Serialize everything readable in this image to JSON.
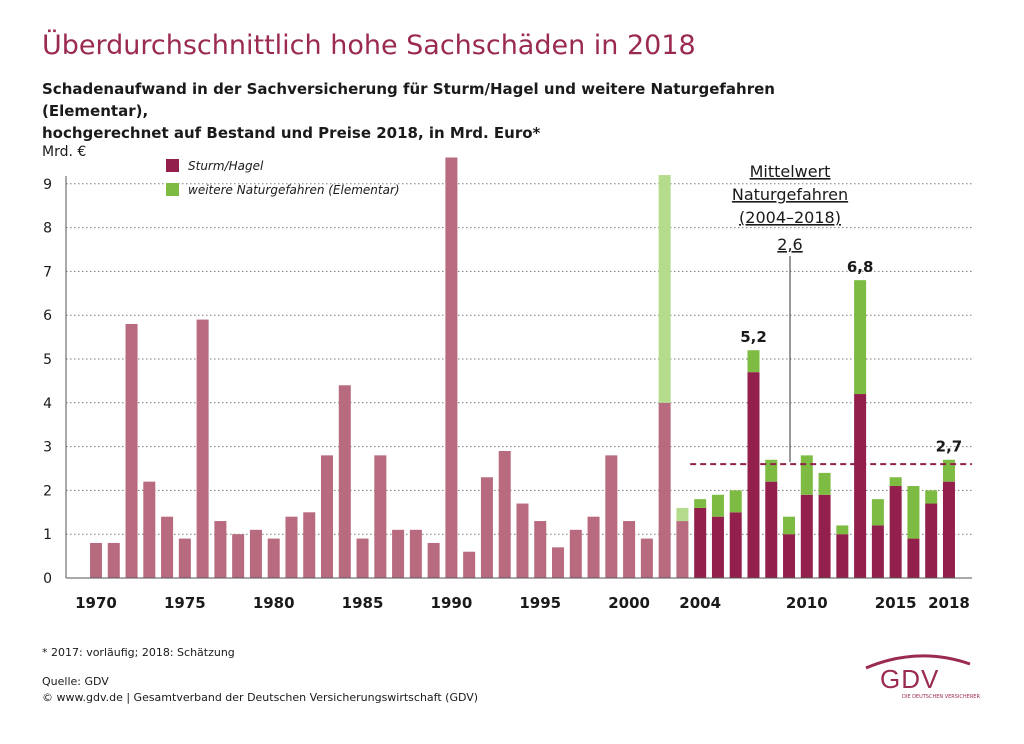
{
  "title": "Überdurchschnittlich hohe Sachschäden in 2018",
  "subtitle_line1": "Schadenaufwand in der Sachversicherung für Sturm/Hagel und weitere Naturgefahren (Elementar),",
  "subtitle_line2": "hochgerechnet auf Bestand und Preise 2018, in Mrd. Euro*",
  "footnote": "* 2017: vorläufig; 2018: Schätzung",
  "source_line1": "Quelle: GDV",
  "source_line2": "© www.gdv.de | Gesamtverband der Deutschen Versicherungswirtschaft (GDV)",
  "logo": {
    "name": "GDV",
    "tagline": "DIE DEUTSCHEN VERSICHERER"
  },
  "colors": {
    "sturm_old": "#b86a7e",
    "sturm_new": "#93204c",
    "elementar_old": "#b5db8d",
    "elementar_new": "#7dbb42",
    "mean_line": "#93204c",
    "title": "#9b2a52"
  },
  "chart_data": {
    "type": "bar",
    "stacked": true,
    "ylabel": "Mrd. €",
    "ylim": [
      0,
      9.5
    ],
    "yticks": [
      0,
      1,
      2,
      3,
      4,
      5,
      6,
      7,
      8,
      9
    ],
    "xtick_labels": [
      "1970",
      "1975",
      "1980",
      "1985",
      "1990",
      "1995",
      "2000",
      "2004",
      "2010",
      "2015",
      "2018"
    ],
    "grid": true,
    "legend": {
      "position": "top-left",
      "entries": [
        "Sturm/Hagel",
        "weitere Naturgefahren (Elementar)"
      ]
    },
    "categories": [
      1970,
      1971,
      1972,
      1973,
      1974,
      1975,
      1976,
      1977,
      1978,
      1979,
      1980,
      1981,
      1982,
      1983,
      1984,
      1985,
      1986,
      1987,
      1988,
      1989,
      1990,
      1991,
      1992,
      1993,
      1994,
      1995,
      1996,
      1997,
      1998,
      1999,
      2000,
      2001,
      2002,
      2003,
      2004,
      2005,
      2006,
      2007,
      2008,
      2009,
      2010,
      2011,
      2012,
      2013,
      2014,
      2015,
      2016,
      2017,
      2018
    ],
    "series": [
      {
        "name": "Sturm/Hagel",
        "values": [
          0.8,
          0.8,
          5.8,
          2.2,
          1.4,
          0.9,
          5.9,
          1.3,
          1.0,
          1.1,
          0.9,
          1.4,
          1.5,
          2.8,
          4.4,
          0.9,
          2.8,
          1.1,
          1.1,
          0.8,
          9.6,
          0.6,
          2.3,
          2.9,
          1.7,
          1.3,
          0.7,
          1.1,
          1.4,
          2.8,
          1.3,
          0.9,
          4.0,
          1.3,
          1.6,
          1.4,
          1.5,
          4.7,
          2.2,
          1.0,
          1.9,
          1.9,
          1.0,
          4.2,
          1.2,
          2.1,
          0.9,
          1.7,
          2.2
        ]
      },
      {
        "name": "weitere Naturgefahren (Elementar)",
        "values": [
          0,
          0,
          0,
          0,
          0,
          0,
          0,
          0,
          0,
          0,
          0,
          0,
          0,
          0,
          0,
          0,
          0,
          0,
          0,
          0,
          0,
          0,
          0,
          0,
          0,
          0,
          0,
          0,
          0,
          0,
          0,
          0,
          5.2,
          0.3,
          0.2,
          0.5,
          0.5,
          0.5,
          0.5,
          0.4,
          0.9,
          0.5,
          0.2,
          2.6,
          0.6,
          0.2,
          1.2,
          0.3,
          0.5
        ]
      }
    ],
    "highlight_from_year": 2004,
    "mean": {
      "value": 2.6,
      "label_lines": [
        "Mittelwert",
        "Naturgefahren",
        "(2004–2018)"
      ],
      "value_label": "2,6",
      "from_year": 2004,
      "to_year": 2018
    },
    "annotations": [
      {
        "year": 2007,
        "label": "5,2"
      },
      {
        "year": 2013,
        "label": "6,8"
      },
      {
        "year": 2018,
        "label": "2,7"
      }
    ]
  }
}
